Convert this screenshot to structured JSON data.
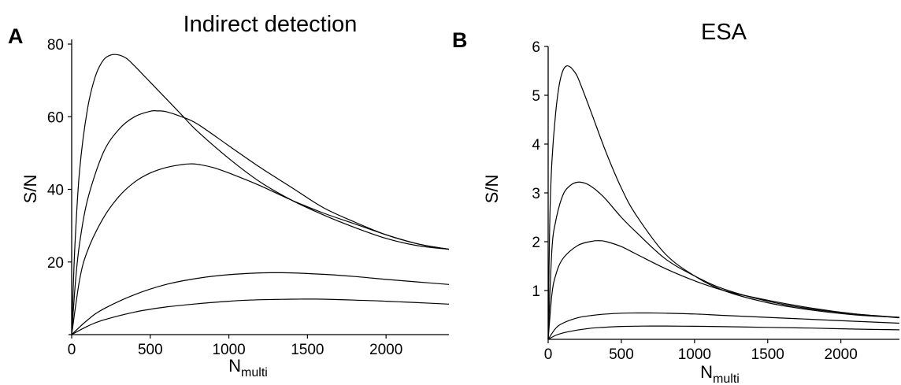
{
  "chart_data": [
    {
      "type": "line",
      "panel_letter": "A",
      "title": "Indirect detection",
      "xlabel_main": "N",
      "xlabel_sub": "multi",
      "ylabel": "S/N",
      "xlim": [
        0,
        2400
      ],
      "ylim": [
        0,
        80
      ],
      "xticks": [
        0,
        500,
        1000,
        1500,
        2000
      ],
      "yticks": [
        20,
        40,
        60,
        80
      ],
      "grid": false,
      "legend": "none",
      "series": [
        {
          "x": [
            0,
            20,
            50,
            100,
            150,
            200,
            250,
            300,
            350,
            400,
            500,
            600,
            700,
            800,
            1000,
            1200,
            1400,
            1600,
            1800,
            2000,
            2200,
            2400
          ],
          "y": [
            0,
            24,
            45,
            62,
            71,
            75.5,
            77,
            77,
            76,
            74,
            69.5,
            65,
            60.5,
            56,
            48.5,
            42,
            37,
            33,
            29.5,
            26.5,
            24.5,
            23.5
          ]
        },
        {
          "x": [
            0,
            25,
            50,
            100,
            200,
            300,
            400,
            500,
            550,
            600,
            700,
            800,
            1000,
            1200,
            1400,
            1600,
            1800,
            2000,
            2200,
            2400
          ],
          "y": [
            0,
            15,
            25,
            37,
            50,
            56.5,
            60,
            61.5,
            61.6,
            61.4,
            60,
            58,
            52,
            46,
            40.5,
            35,
            31,
            27.5,
            25,
            23.5
          ]
        },
        {
          "x": [
            0,
            50,
            100,
            200,
            300,
            400,
            500,
            600,
            700,
            750,
            800,
            900,
            1000,
            1200,
            1400,
            1600,
            1800,
            2000,
            2200,
            2400
          ],
          "y": [
            0,
            15,
            23,
            32,
            38,
            42,
            44.5,
            46,
            46.8,
            47,
            46.9,
            46,
            44.5,
            41,
            37,
            33.5,
            30.5,
            27.5,
            25,
            23.5
          ]
        },
        {
          "x": [
            0,
            100,
            200,
            400,
            600,
            800,
            1000,
            1200,
            1300,
            1400,
            1600,
            1800,
            2000,
            2200,
            2400
          ],
          "y": [
            0,
            4,
            7,
            11,
            13.8,
            15.5,
            16.5,
            17,
            17.05,
            17,
            16.6,
            16,
            15.2,
            14.5,
            13.8
          ]
        },
        {
          "x": [
            0,
            100,
            200,
            400,
            600,
            800,
            1000,
            1200,
            1400,
            1500,
            1600,
            1800,
            2000,
            2200,
            2400
          ],
          "y": [
            0,
            2.3,
            4,
            6.2,
            7.6,
            8.5,
            9.2,
            9.6,
            9.75,
            9.78,
            9.75,
            9.5,
            9.2,
            8.8,
            8.4
          ]
        }
      ]
    },
    {
      "type": "line",
      "panel_letter": "B",
      "title": "ESA",
      "xlabel_main": "N",
      "xlabel_sub": "multi",
      "ylabel": "S/N",
      "xlim": [
        0,
        2400
      ],
      "ylim": [
        0,
        6
      ],
      "xticks": [
        0,
        500,
        1000,
        1500,
        2000
      ],
      "yticks": [
        1,
        2,
        3,
        4,
        5,
        6
      ],
      "grid": false,
      "legend": "none",
      "series": [
        {
          "x": [
            0,
            10,
            25,
            50,
            75,
            100,
            125,
            150,
            175,
            200,
            250,
            300,
            400,
            500,
            600,
            800,
            1000,
            1200,
            1500,
            1800,
            2100,
            2400
          ],
          "y": [
            0,
            2.3,
            3.6,
            4.6,
            5.2,
            5.5,
            5.6,
            5.58,
            5.5,
            5.38,
            5.0,
            4.6,
            3.8,
            3.1,
            2.55,
            1.75,
            1.3,
            1.0,
            0.75,
            0.6,
            0.5,
            0.45
          ]
        },
        {
          "x": [
            0,
            25,
            50,
            100,
            150,
            200,
            250,
            300,
            350,
            400,
            500,
            600,
            800,
            1000,
            1200,
            1500,
            1800,
            2100,
            2400
          ],
          "y": [
            0,
            1.8,
            2.4,
            2.95,
            3.15,
            3.22,
            3.2,
            3.12,
            3.0,
            2.85,
            2.5,
            2.2,
            1.65,
            1.3,
            1.03,
            0.78,
            0.62,
            0.52,
            0.45
          ]
        },
        {
          "x": [
            0,
            25,
            50,
            100,
            200,
            300,
            360,
            400,
            500,
            600,
            800,
            1000,
            1200,
            1500,
            1800,
            2100,
            2400
          ],
          "y": [
            0,
            0.9,
            1.3,
            1.65,
            1.92,
            2.01,
            2.02,
            2.0,
            1.9,
            1.75,
            1.45,
            1.2,
            1.0,
            0.8,
            0.64,
            0.52,
            0.44
          ]
        },
        {
          "x": [
            0,
            50,
            100,
            200,
            300,
            400,
            500,
            600,
            700,
            800,
            1000,
            1200,
            1500,
            1800,
            2100,
            2400
          ],
          "y": [
            0,
            0.22,
            0.33,
            0.44,
            0.49,
            0.52,
            0.535,
            0.54,
            0.54,
            0.535,
            0.52,
            0.49,
            0.45,
            0.41,
            0.37,
            0.33
          ]
        },
        {
          "x": [
            0,
            50,
            100,
            200,
            300,
            400,
            500,
            600,
            700,
            800,
            1000,
            1200,
            1500,
            1800,
            2100,
            2400
          ],
          "y": [
            0,
            0.08,
            0.13,
            0.19,
            0.23,
            0.25,
            0.265,
            0.27,
            0.272,
            0.272,
            0.268,
            0.26,
            0.245,
            0.23,
            0.21,
            0.195
          ]
        }
      ]
    }
  ]
}
